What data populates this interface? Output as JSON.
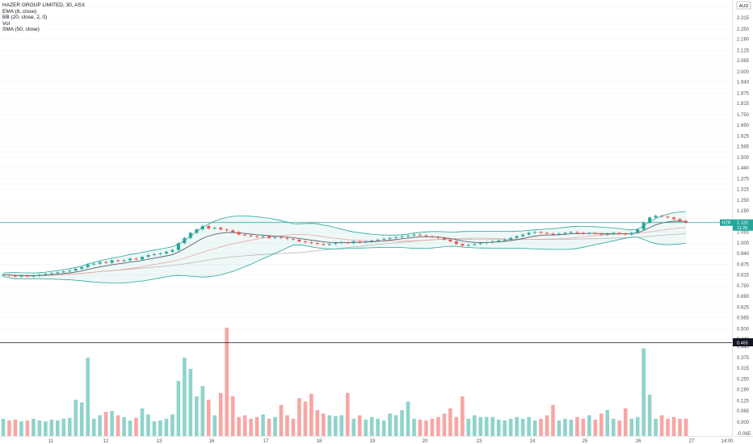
{
  "legend": {
    "title": "HAZER GROUP LIMITED, 30, ASX",
    "ema": "EMA (8, close)",
    "bb": "BB (20, close, 2, 0)",
    "vol": "Vol",
    "sma": "SMA (50, close)"
  },
  "currency": "AUD",
  "last_price": {
    "symbol": "HZR",
    "price": "1.120",
    "countdown": "11:26"
  },
  "crosshair_label": "0.465",
  "colors": {
    "up": "#26a69a",
    "down": "#ef5350",
    "vol_up": "#8fd3cb",
    "vol_down": "#f7a6a4",
    "bb": "#26a69a",
    "ema": "#ef5350",
    "sma": "#b9b9b9",
    "price_line": "#26a69a"
  },
  "chart_data": {
    "type": "candlestick",
    "title": "HAZER GROUP LIMITED, 30, ASX",
    "x_ticks": [
      "11",
      "12",
      "13",
      "16",
      "17",
      "18",
      "19",
      "20",
      "23",
      "24",
      "25",
      "26",
      "27",
      "14:00"
    ],
    "price_ticks": [
      "2.380",
      "2.315",
      "2.250",
      "2.190",
      "2.125",
      "2.065",
      "2.000",
      "1.940",
      "1.875",
      "1.815",
      "1.750",
      "1.690",
      "1.625",
      "1.565",
      "1.500",
      "1.440",
      "1.375",
      "1.315",
      "1.250",
      "1.190",
      "1.125",
      "1.065",
      "1.000",
      "0.940",
      "0.875",
      "0.815",
      "0.750",
      "0.690",
      "0.625",
      "0.565",
      "0.500",
      "0.440"
    ],
    "volume_ticks": [
      "0.440",
      "0.375",
      "0.315",
      "0.250",
      "0.190",
      "0.125",
      "0.065",
      "0.000",
      "-0.065"
    ],
    "close": [
      0.815,
      0.81,
      0.805,
      0.81,
      0.805,
      0.81,
      0.815,
      0.82,
      0.825,
      0.83,
      0.835,
      0.84,
      0.85,
      0.86,
      0.875,
      0.88,
      0.89,
      0.885,
      0.9,
      0.895,
      0.9,
      0.91,
      0.905,
      0.92,
      0.93,
      0.935,
      0.94,
      0.95,
      0.96,
      1.0,
      1.03,
      1.06,
      1.08,
      1.1,
      1.085,
      1.09,
      1.08,
      1.075,
      1.065,
      1.05,
      1.045,
      1.04,
      1.035,
      1.04,
      1.03,
      1.035,
      1.03,
      1.025,
      1.02,
      1.01,
      1.005,
      1.0,
      0.995,
      0.99,
      0.995,
      1.0,
      1.005,
      1.0,
      1.01,
      1.005,
      1.01,
      1.015,
      1.02,
      1.025,
      1.03,
      1.035,
      1.04,
      1.045,
      1.05,
      1.045,
      1.04,
      1.035,
      1.03,
      1.02,
      1.01,
      0.995,
      0.985,
      0.99,
      0.995,
      1.0,
      1.005,
      1.01,
      1.015,
      1.02,
      1.03,
      1.04,
      1.05,
      1.06,
      1.065,
      1.06,
      1.055,
      1.05,
      1.055,
      1.06,
      1.065,
      1.06,
      1.055,
      1.06,
      1.055,
      1.05,
      1.055,
      1.06,
      1.055,
      1.05,
      1.06,
      1.08,
      1.12,
      1.15,
      1.16,
      1.155,
      1.15,
      1.14,
      1.13,
      1.12
    ],
    "volume": [
      0.02,
      0.01,
      0.015,
      0.005,
      0.01,
      0.02,
      0.01,
      0.005,
      0.015,
      0.01,
      0.02,
      0.025,
      0.13,
      0.115,
      0.375,
      0.02,
      0.04,
      0.06,
      0.065,
      0.04,
      0.03,
      0.01,
      0.025,
      0.08,
      0.045,
      0.005,
      0.01,
      0.02,
      0.045,
      0.24,
      0.375,
      0.31,
      0.15,
      0.21,
      0.13,
      0.04,
      0.17,
      0.55,
      0.15,
      0.03,
      0.04,
      0.02,
      0.03,
      0.045,
      0.02,
      0.03,
      0.1,
      0.04,
      0.02,
      0.14,
      0.12,
      0.165,
      0.07,
      0.05,
      0.04,
      0.035,
      0.04,
      0.17,
      0.02,
      0.04,
      0.015,
      0.03,
      0.02,
      0.01,
      0.05,
      0.04,
      0.07,
      0.12,
      0.02,
      0.015,
      0.01,
      0.02,
      0.03,
      0.05,
      0.08,
      0.03,
      0.15,
      0.02,
      0.04,
      0.03,
      0.03,
      0.03,
      0.015,
      0.01,
      0.02,
      0.03,
      0.02,
      0.03,
      0.01,
      0.02,
      0.04,
      0.1,
      0.01,
      0.02,
      0.015,
      0.03,
      0.02,
      0.04,
      0.015,
      0.05,
      0.07,
      0.02,
      0.01,
      0.08,
      0.02,
      0.03,
      0.43,
      0.16,
      0.02,
      0.04,
      0.02,
      0.03,
      0.02,
      0.02
    ],
    "last_price": 1.12,
    "ylim_price": [
      0.44,
      2.41
    ],
    "ylim_volume": [
      -0.08,
      0.46
    ]
  }
}
